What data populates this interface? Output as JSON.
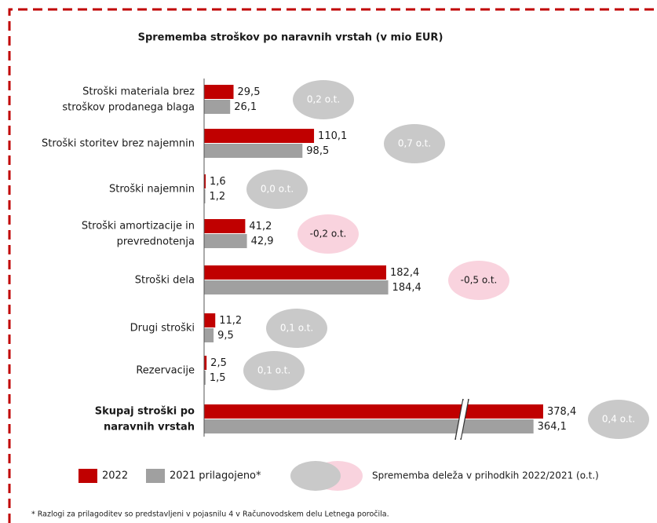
{
  "chart_data": {
    "type": "bar",
    "orientation": "horizontal",
    "title": "Sprememba stroškov po naravnih vrstah (v mio EUR)",
    "categories": [
      [
        "Stroški materiala brez",
        "stroškov prodanega blaga"
      ],
      [
        "Stroški storitev brez najemnin"
      ],
      [
        "Stroški najemnin"
      ],
      [
        "Stroški amortizacije in",
        "prevrednotenja"
      ],
      [
        "Stroški dela"
      ],
      [
        "Drugi stroški"
      ],
      [
        "Rezervacije"
      ],
      [
        "Skupaj stroški po",
        "naravnih vrstah"
      ]
    ],
    "series": [
      {
        "name": "2022",
        "color": "#c00000",
        "values": [
          29.5,
          110.1,
          1.6,
          41.2,
          182.4,
          11.2,
          2.5,
          378.4
        ],
        "value_labels": [
          "29,5",
          "110,1",
          "1,6",
          "41,2",
          "182,4",
          "11,2",
          "2,5",
          "378,4"
        ]
      },
      {
        "name": "2021 prilagojeno*",
        "color": "#a0a0a0",
        "values": [
          26.1,
          98.5,
          1.2,
          42.9,
          184.4,
          9.5,
          1.5,
          364.1
        ],
        "value_labels": [
          "26,1",
          "98,5",
          "1,2",
          "42,9",
          "184,4",
          "9,5",
          "1,5",
          "364,1"
        ]
      }
    ],
    "changes": [
      {
        "label": "0,2 o.t.",
        "color": "#c9c9c9"
      },
      {
        "label": "0,7 o.t.",
        "color": "#c9c9c9"
      },
      {
        "label": "0,0 o.t.",
        "color": "#c9c9c9"
      },
      {
        "label": "-0,2 o.t.",
        "color": "#f9d3de"
      },
      {
        "label": "-0,5 o.t.",
        "color": "#f9d3de"
      },
      {
        "label": "0,1 o.t.",
        "color": "#c9c9c9"
      },
      {
        "label": "0,1 o.t.",
        "color": "#c9c9c9"
      },
      {
        "label": "0,4 o.t.",
        "color": "#c9c9c9"
      }
    ],
    "changes_legend": "Sprememba deleža v prihodkih 2022/2021 (o.t.)",
    "axis_break": true,
    "footnote": "* Razlogi za prilagoditev so predstavljeni v pojasnilu 4 v Računovodskem delu Letnega poročila."
  }
}
